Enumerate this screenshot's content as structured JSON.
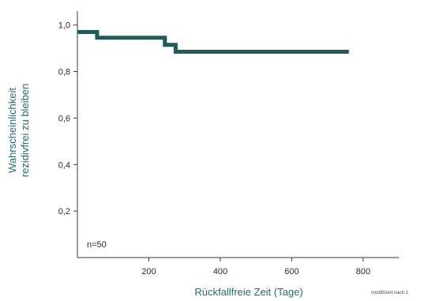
{
  "chart_data": {
    "type": "line",
    "step": true,
    "xlabel": "Rückfallfreie Zeit (Tage)",
    "ylabel": [
      "Wahrscheinlichkeit",
      "rezidivfrei zu bleiben"
    ],
    "annotation": "n=50",
    "source_note": "modifiziert nach 1",
    "xlim": [
      0,
      900
    ],
    "ylim": [
      0,
      1.06
    ],
    "xticks": [
      200,
      400,
      600,
      800
    ],
    "xtick_labels": [
      "200",
      "400",
      "600",
      "800"
    ],
    "yticks": [
      0.2,
      0.4,
      0.6,
      0.8,
      1.0
    ],
    "ytick_labels": [
      "0,2",
      "0,4",
      "0,6",
      "0,8",
      "1,0"
    ],
    "grid": false,
    "line_color": "#1f5c59",
    "series": [
      {
        "x": [
          0,
          55,
          55,
          245,
          245,
          275,
          275,
          760
        ],
        "y": [
          0.97,
          0.97,
          0.945,
          0.945,
          0.915,
          0.915,
          0.885,
          0.885
        ]
      }
    ]
  }
}
